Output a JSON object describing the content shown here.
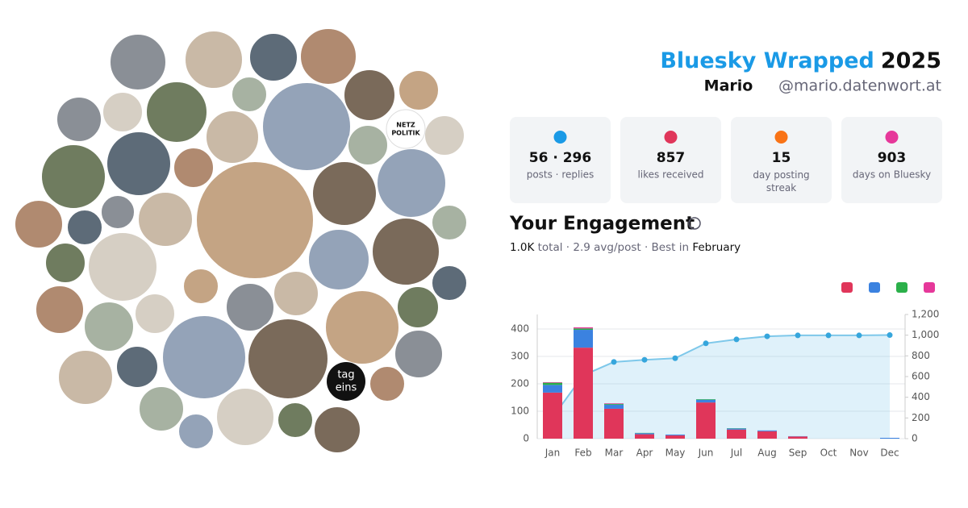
{
  "header": {
    "title": "Bluesky Wrapped",
    "year": "2025",
    "name": "Mario",
    "handle": "@mario.datenwort.at"
  },
  "stats": [
    {
      "value": "56 · 296",
      "label": "posts · replies"
    },
    {
      "value": "857",
      "label": "likes received"
    },
    {
      "value": "15",
      "label": "day posting streak"
    },
    {
      "value": "903",
      "label": "days on Bluesky"
    }
  ],
  "engagement": {
    "title": "Your Engagement",
    "total": "1.0K",
    "middle": "total · 2.9 avg/post · Best in",
    "best": "February"
  },
  "avatar_text": [
    "tag",
    "eins",
    "NETZ",
    "POLITIK"
  ],
  "chart_data": {
    "type": "bar",
    "categories": [
      "Jan",
      "Feb",
      "Mar",
      "Apr",
      "May",
      "Jun",
      "Jul",
      "Aug",
      "Sep",
      "Oct",
      "Nov",
      "Dec"
    ],
    "series": [
      {
        "color": "#e0365a",
        "values": [
          168,
          332,
          109,
          16,
          12,
          132,
          33,
          27,
          8,
          0,
          0,
          0
        ]
      },
      {
        "color": "#3b82e0",
        "values": [
          28,
          65,
          15,
          4,
          3,
          10,
          4,
          3,
          1,
          0,
          0,
          3
        ]
      },
      {
        "color": "#2bb04a",
        "values": [
          8,
          5,
          3,
          1,
          0,
          2,
          1,
          0,
          0,
          0,
          0,
          0
        ]
      },
      {
        "color": "#e6389a",
        "values": [
          2,
          4,
          2,
          0,
          0,
          0,
          0,
          0,
          0,
          0,
          0,
          0
        ]
      },
      {
        "type": "line",
        "axis": "y2",
        "color": "#7ec8ea",
        "values": [
          206,
          612,
          741,
          762,
          777,
          921,
          959,
          989,
          998,
          998,
          998,
          1001
        ]
      }
    ],
    "ylim": [
      0,
      453
    ],
    "yticks": [
      0,
      100,
      200,
      300,
      400
    ],
    "y2lim": [
      0,
      1200
    ],
    "y2ticks": [
      0,
      200,
      400,
      600,
      800,
      {
        "value": 1000,
        "label": "1,000"
      },
      {
        "value": 1200,
        "label": "1,200"
      }
    ],
    "grid": true
  }
}
